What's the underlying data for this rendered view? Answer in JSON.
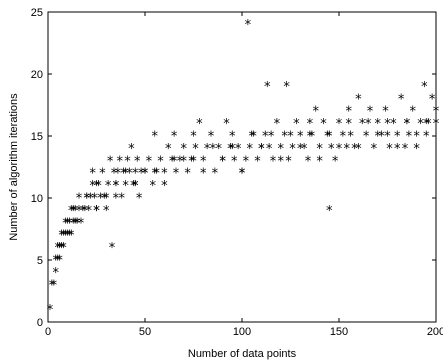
{
  "chart_data": {
    "type": "scatter",
    "title": "",
    "xlabel": "Number of data points",
    "ylabel": "Number of algorithm iterations",
    "xlim": [
      0,
      200
    ],
    "ylim": [
      0,
      25
    ],
    "xticks": [
      0,
      50,
      100,
      150,
      200
    ],
    "yticks": [
      0,
      5,
      10,
      15,
      20,
      25
    ],
    "grid": false,
    "marker": "*",
    "series": [
      {
        "name": "",
        "x": [
          1,
          2,
          3,
          4,
          4,
          5,
          5,
          6,
          6,
          7,
          7,
          8,
          8,
          9,
          9,
          10,
          10,
          11,
          11,
          12,
          12,
          13,
          13,
          14,
          14,
          15,
          16,
          16,
          17,
          18,
          19,
          20,
          21,
          22,
          23,
          23,
          24,
          25,
          26,
          27,
          28,
          29,
          30,
          31,
          32,
          33,
          34,
          35,
          36,
          37,
          38,
          39,
          40,
          41,
          42,
          43,
          44,
          45,
          46,
          47,
          48,
          50,
          52,
          54,
          55,
          56,
          58,
          60,
          62,
          64,
          65,
          66,
          68,
          70,
          72,
          74,
          75,
          76,
          78,
          80,
          82,
          84,
          86,
          88,
          90,
          92,
          94,
          95,
          96,
          98,
          100,
          102,
          103,
          104,
          106,
          108,
          110,
          112,
          113,
          114,
          116,
          118,
          120,
          122,
          123,
          124,
          126,
          128,
          130,
          132,
          134,
          135,
          136,
          138,
          140,
          142,
          144,
          145,
          146,
          148,
          150,
          152,
          154,
          155,
          156,
          158,
          160,
          162,
          164,
          166,
          168,
          170,
          172,
          174,
          175,
          176,
          178,
          180,
          182,
          184,
          185,
          186,
          188,
          190,
          192,
          194,
          195,
          196,
          198,
          200,
          15,
          20,
          25,
          30,
          35,
          40,
          45,
          50,
          60,
          70,
          80,
          90,
          100,
          110,
          120,
          130,
          140,
          150,
          160,
          170,
          180,
          190,
          200,
          25,
          35,
          45,
          55,
          65,
          75,
          85,
          95,
          105,
          115,
          125,
          135,
          145,
          155,
          165,
          175,
          185,
          195
        ],
        "y": [
          1,
          3,
          3,
          4,
          5,
          5,
          6,
          5,
          6,
          6,
          7,
          6,
          7,
          7,
          8,
          7,
          8,
          7,
          8,
          7,
          9,
          8,
          9,
          8,
          9,
          8,
          9,
          10,
          8,
          9,
          9,
          10,
          9,
          10,
          12,
          11,
          10,
          9,
          11,
          10,
          12,
          10,
          9,
          11,
          13,
          6,
          12,
          11,
          12,
          13,
          10,
          12,
          11,
          13,
          12,
          14,
          11,
          12,
          13,
          10,
          12,
          12,
          13,
          11,
          15,
          12,
          13,
          11,
          14,
          13,
          15,
          12,
          13,
          14,
          12,
          13,
          15,
          14,
          16,
          13,
          14,
          15,
          12,
          14,
          13,
          16,
          14,
          15,
          13,
          14,
          12,
          13,
          24,
          14,
          15,
          13,
          14,
          15,
          19,
          14,
          13,
          16,
          14,
          15,
          19,
          13,
          14,
          16,
          15,
          14,
          13,
          16,
          15,
          17,
          14,
          16,
          15,
          9,
          14,
          13,
          16,
          15,
          14,
          17,
          15,
          14,
          18,
          16,
          15,
          17,
          14,
          16,
          15,
          17,
          15,
          14,
          16,
          15,
          18,
          14,
          16,
          15,
          17,
          14,
          16,
          19,
          15,
          16,
          18,
          17,
          8,
          10,
          11,
          10,
          11,
          12,
          11,
          12,
          12,
          13,
          12,
          13,
          12,
          14,
          13,
          14,
          13,
          14,
          14,
          15,
          14,
          15,
          16,
          9,
          10,
          11,
          12,
          13,
          13,
          14,
          14,
          15,
          15,
          15,
          15,
          15,
          16,
          16,
          16,
          16,
          16
        ]
      }
    ]
  }
}
